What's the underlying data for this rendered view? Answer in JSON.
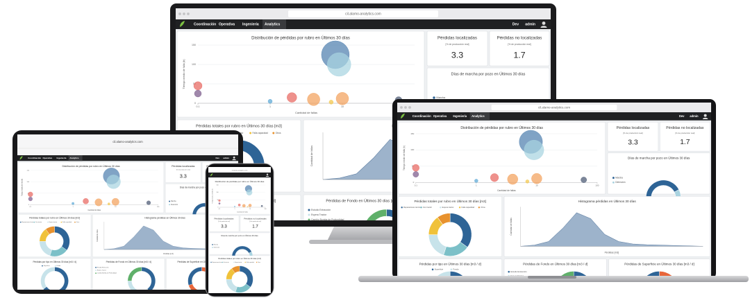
{
  "browser": {
    "url": "cil.alamo-analytics.com"
  },
  "nav": {
    "items": [
      "Coordinación",
      "Operativa",
      "Ingeniería",
      "Analytics"
    ],
    "env": "Dev",
    "user": "admin"
  },
  "dashboard": {
    "bubble": {
      "type": "scatter",
      "title": "Distribución de pérdidas por rubro en Últimos 30 días",
      "x_label": "Cantidad de fallas",
      "y_label": "Tiempo medio de falla (h)",
      "log_x": true,
      "xlim": [
        0.1,
        100
      ],
      "ylim": [
        0,
        150
      ],
      "xticks": [
        0.1,
        1,
        10,
        100
      ],
      "yticks": [
        0,
        50,
        100,
        150
      ],
      "x": [
        0.1,
        0.1,
        1,
        2,
        4,
        7,
        8,
        9,
        10,
        60
      ],
      "y": [
        45,
        25,
        5,
        15,
        10,
        3,
        125,
        100,
        12,
        8
      ],
      "size": [
        6,
        5,
        3,
        7,
        9,
        3,
        20,
        17,
        9,
        5
      ],
      "colors": [
        "#e8665f",
        "#7b5a8a",
        "#5aa7d6",
        "#e8665f",
        "#f3a15c",
        "#f3c64a",
        "#4f7fae",
        "#a8d4e0",
        "#f3a15c",
        "#4a5872"
      ]
    },
    "kpis": [
      {
        "title": "Pérdidas localizadas",
        "subtitle": "[% de producción real]",
        "value": "3.3"
      },
      {
        "title": "Pérdidas no localizadas",
        "subtitle": "[% de producción real]",
        "value": "1.7"
      }
    ],
    "marcha": {
      "type": "pie",
      "title": "Días de marcha por pozo en Últimos 30 días",
      "legend": [
        "Marcha",
        "Detención"
      ],
      "values": [
        85,
        15
      ],
      "colors": [
        "#2e6496",
        "#a9d3e0"
      ]
    },
    "totales": {
      "type": "pie",
      "title": "Pérdidas totales por rubro en Últimos 30 días [m3]",
      "legend": [
        "Reparaciones técnicas",
        "Con tractor",
        "Espera tractor",
        "Falla capacidad",
        "Otros"
      ],
      "values": [
        35,
        20,
        20,
        15,
        10
      ],
      "colors": [
        "#2e6496",
        "#7cc0c8",
        "#c7e3ea",
        "#f0c23a",
        "#e8922e"
      ]
    },
    "histograma": {
      "type": "area",
      "title": "Histograma pérdidas en Últimos 30 días",
      "x_label": "Pérdidas [m3]",
      "y_label": "Cantidad de fallas",
      "ylim": [
        0,
        100
      ],
      "values": [
        0,
        3,
        12,
        45,
        85,
        70,
        30,
        12,
        6,
        4,
        3,
        2,
        1,
        0
      ],
      "color": "#8ca6c2"
    },
    "tipo": {
      "type": "pie",
      "title": "Pérdidas por tipo en Últimos 30 días [m3 / d]",
      "legend": [
        "Superficie",
        "Fondo"
      ],
      "values": [
        65,
        35
      ],
      "colors": [
        "#2e6496",
        "#c7e3ea"
      ]
    },
    "fondo": {
      "type": "pie",
      "title": "Pérdidas de Fondo en Últimos 30 días [m3 / d]",
      "legend": [
        "Estudio Extracción",
        "Espera Tractor",
        "Cambio Bomba de Profundidad"
      ],
      "values": [
        40,
        35,
        25
      ],
      "colors": [
        "#2e6496",
        "#c7e3ea",
        "#5fb06a"
      ]
    },
    "superficie": {
      "type": "pie",
      "title": "Pérdidas de Superficie en Últimos 30 días [m3 / d]",
      "values": [
        70,
        30
      ],
      "colors": [
        "#e8663a",
        "#2e6496"
      ]
    }
  }
}
